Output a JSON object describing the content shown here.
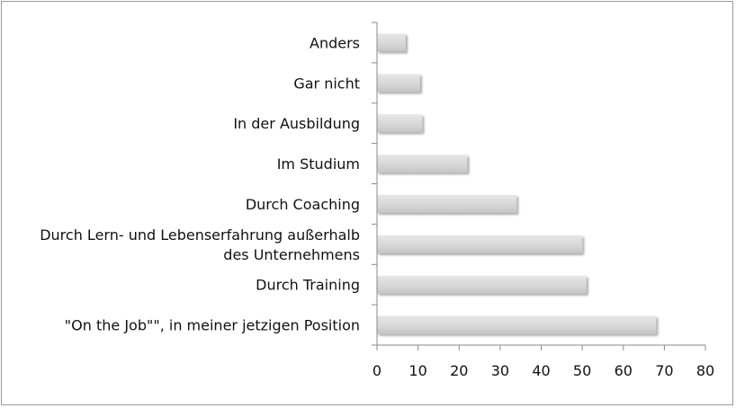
{
  "chart_data": {
    "type": "bar",
    "orientation": "horizontal",
    "title": "",
    "xlabel": "",
    "ylabel": "",
    "categories": [
      "\"On the Job\"\", in meiner jetzigen Position",
      "Durch Training",
      "Durch Lern- und Lebenserfahrung außerhalb des Unternehmens",
      "Durch Coaching",
      "Im Studium",
      "In der Ausbildung",
      "Gar nicht",
      "Anders"
    ],
    "category_lines": [
      [
        "\"On the Job\"\", in meiner jetzigen Position"
      ],
      [
        "Durch Training"
      ],
      [
        "Durch Lern- und Lebenserfahrung außerhalb",
        "des Unternehmens"
      ],
      [
        "Durch Coaching"
      ],
      [
        "Im Studium"
      ],
      [
        "In der Ausbildung"
      ],
      [
        "Gar nicht"
      ],
      [
        "Anders"
      ]
    ],
    "values": [
      68,
      51,
      50,
      34,
      22,
      11,
      10.5,
      7
    ],
    "xlim": [
      0,
      80
    ],
    "xticks": [
      0,
      10,
      20,
      30,
      40,
      50,
      60,
      70,
      80
    ],
    "grid": false,
    "legend": "none",
    "bar_color": "#d9d9d9"
  }
}
